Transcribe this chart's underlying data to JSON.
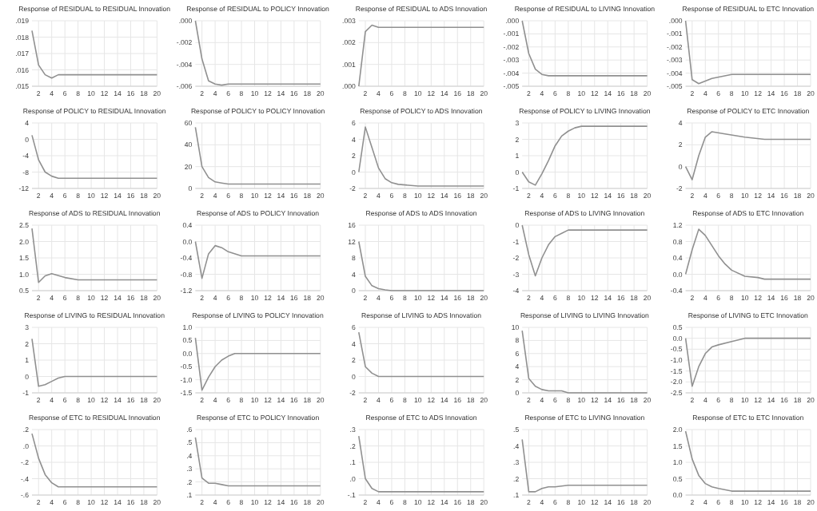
{
  "chart_data": [
    {
      "type": "line",
      "title": "Response of RESIDUAL to RESIDUAL Innovation",
      "x": [
        1,
        2,
        3,
        4,
        5,
        6,
        20
      ],
      "values": [
        0.0184,
        0.0163,
        0.0157,
        0.0155,
        0.0157,
        0.0157,
        0.0157
      ],
      "xlim": [
        1,
        20
      ],
      "xticks": [
        2,
        4,
        6,
        8,
        10,
        12,
        14,
        16,
        18,
        20
      ],
      "ylim": [
        0.015,
        0.019
      ],
      "yticks": [
        {
          "value": 0.015,
          "label": ".015"
        },
        {
          "value": 0.016,
          "label": ".016"
        },
        {
          "value": 0.017,
          "label": ".017"
        },
        {
          "value": 0.018,
          "label": ".018"
        },
        {
          "value": 0.019,
          "label": ".019"
        }
      ],
      "grid": true,
      "color": "#909090"
    },
    {
      "type": "line",
      "title": "Response of RESIDUAL to POLICY Innovation",
      "x": [
        1,
        2,
        3,
        4,
        5,
        6,
        20
      ],
      "values": [
        0,
        -0.0035,
        -0.0055,
        -0.0058,
        -0.0059,
        -0.0058,
        -0.0058
      ],
      "xlim": [
        1,
        20
      ],
      "xticks": [
        2,
        4,
        6,
        8,
        10,
        12,
        14,
        16,
        18,
        20
      ],
      "ylim": [
        -0.006,
        0
      ],
      "yticks": [
        {
          "value": -0.006,
          "label": "-.006"
        },
        {
          "value": -0.004,
          "label": "-.004"
        },
        {
          "value": -0.002,
          "label": "-.002"
        },
        {
          "value": 0,
          "label": ".000"
        }
      ],
      "grid": true,
      "color": "#909090"
    },
    {
      "type": "line",
      "title": "Response of RESIDUAL to ADS Innovation",
      "x": [
        1,
        2,
        3,
        4,
        20
      ],
      "values": [
        0,
        0.0025,
        0.0028,
        0.0027,
        0.0027
      ],
      "xlim": [
        1,
        20
      ],
      "xticks": [
        2,
        4,
        6,
        8,
        10,
        12,
        14,
        16,
        18,
        20
      ],
      "ylim": [
        0,
        0.003
      ],
      "yticks": [
        {
          "value": 0,
          "label": ".000"
        },
        {
          "value": 0.001,
          "label": ".001"
        },
        {
          "value": 0.002,
          "label": ".002"
        },
        {
          "value": 0.003,
          "label": ".003"
        }
      ],
      "grid": true,
      "color": "#909090"
    },
    {
      "type": "line",
      "title": "Response of RESIDUAL to LIVING Innovation",
      "x": [
        1,
        2,
        3,
        4,
        5,
        20
      ],
      "values": [
        0,
        -0.0025,
        -0.0037,
        -0.0041,
        -0.0042,
        -0.0042
      ],
      "xlim": [
        1,
        20
      ],
      "xticks": [
        2,
        4,
        6,
        8,
        10,
        12,
        14,
        16,
        18,
        20
      ],
      "ylim": [
        -0.005,
        0
      ],
      "yticks": [
        {
          "value": -0.005,
          "label": "-.005"
        },
        {
          "value": -0.004,
          "label": "-.004"
        },
        {
          "value": -0.003,
          "label": "-.003"
        },
        {
          "value": -0.002,
          "label": "-.002"
        },
        {
          "value": -0.001,
          "label": "-.001"
        },
        {
          "value": 0,
          "label": ".000"
        }
      ],
      "grid": true,
      "color": "#909090"
    },
    {
      "type": "line",
      "title": "Response of RESIDUAL to ETC Innovation",
      "x": [
        1,
        2,
        3,
        5,
        8,
        20
      ],
      "values": [
        0,
        -0.0045,
        -0.0048,
        -0.0044,
        -0.0041,
        -0.0041
      ],
      "xlim": [
        1,
        20
      ],
      "xticks": [
        2,
        4,
        6,
        8,
        10,
        12,
        14,
        16,
        18,
        20
      ],
      "ylim": [
        -0.005,
        0
      ],
      "yticks": [
        {
          "value": -0.005,
          "label": "-.005"
        },
        {
          "value": -0.004,
          "label": "-.004"
        },
        {
          "value": -0.003,
          "label": "-.003"
        },
        {
          "value": -0.002,
          "label": "-.002"
        },
        {
          "value": -0.001,
          "label": "-.001"
        },
        {
          "value": 0,
          "label": ".000"
        }
      ],
      "grid": true,
      "color": "#909090"
    },
    {
      "type": "line",
      "title": "Response of POLICY to RESIDUAL Innovation",
      "x": [
        1,
        2,
        3,
        4,
        5,
        20
      ],
      "values": [
        1,
        -5,
        -8,
        -9,
        -9.5,
        -9.5
      ],
      "xlim": [
        1,
        20
      ],
      "xticks": [
        2,
        4,
        6,
        8,
        10,
        12,
        14,
        16,
        18,
        20
      ],
      "ylim": [
        -12,
        4
      ],
      "yticks": [
        -12,
        -8,
        -4,
        0,
        4
      ],
      "grid": true,
      "color": "#909090"
    },
    {
      "type": "line",
      "title": "Response of POLICY to POLICY Innovation",
      "x": [
        1,
        2,
        3,
        4,
        5,
        6,
        20
      ],
      "values": [
        56,
        20,
        10,
        6,
        5,
        4,
        4
      ],
      "xlim": [
        1,
        20
      ],
      "xticks": [
        2,
        4,
        6,
        8,
        10,
        12,
        14,
        16,
        18,
        20
      ],
      "ylim": [
        0,
        60
      ],
      "yticks": [
        0,
        20,
        40,
        60
      ],
      "grid": true,
      "color": "#909090"
    },
    {
      "type": "line",
      "title": "Response of POLICY to ADS Innovation",
      "x": [
        1,
        2,
        3,
        4,
        5,
        6,
        7,
        10,
        20
      ],
      "values": [
        0,
        5.5,
        3,
        0.5,
        -0.8,
        -1.3,
        -1.5,
        -1.7,
        -1.7
      ],
      "xlim": [
        1,
        20
      ],
      "xticks": [
        2,
        4,
        6,
        8,
        10,
        12,
        14,
        16,
        18,
        20
      ],
      "ylim": [
        -2,
        6
      ],
      "yticks": [
        -2,
        0,
        2,
        4,
        6
      ],
      "grid": true,
      "color": "#909090"
    },
    {
      "type": "line",
      "title": "Response of POLICY to LIVING Innovation",
      "x": [
        1,
        2,
        3,
        4,
        5,
        6,
        7,
        8,
        9,
        10,
        20
      ],
      "values": [
        0,
        -0.6,
        -0.8,
        -0.1,
        0.7,
        1.6,
        2.2,
        2.5,
        2.7,
        2.8,
        2.8
      ],
      "xlim": [
        1,
        20
      ],
      "xticks": [
        2,
        4,
        6,
        8,
        10,
        12,
        14,
        16,
        18,
        20
      ],
      "ylim": [
        -1,
        3
      ],
      "yticks": [
        -1,
        0,
        1,
        2,
        3
      ],
      "grid": true,
      "color": "#909090"
    },
    {
      "type": "line",
      "title": "Response of POLICY to ETC Innovation",
      "x": [
        1,
        2,
        3,
        4,
        5,
        7,
        10,
        13,
        20
      ],
      "values": [
        0,
        -1.2,
        1,
        2.7,
        3.2,
        3,
        2.7,
        2.5,
        2.5
      ],
      "xlim": [
        1,
        20
      ],
      "xticks": [
        2,
        4,
        6,
        8,
        10,
        12,
        14,
        16,
        18,
        20
      ],
      "ylim": [
        -2,
        4
      ],
      "yticks": [
        -2,
        0,
        2,
        4
      ],
      "grid": true,
      "color": "#909090"
    },
    {
      "type": "line",
      "title": "Response of ADS to RESIDUAL Innovation",
      "x": [
        1,
        2,
        3,
        4,
        6,
        8,
        20
      ],
      "values": [
        2.4,
        0.75,
        0.95,
        1.02,
        0.9,
        0.83,
        0.83
      ],
      "xlim": [
        1,
        20
      ],
      "xticks": [
        2,
        4,
        6,
        8,
        10,
        12,
        14,
        16,
        18,
        20
      ],
      "ylim": [
        0.5,
        2.5
      ],
      "yticks": [
        0.5,
        {
          "value": 1,
          "label": "1.0"
        },
        1.5,
        {
          "value": 2,
          "label": "2.0"
        },
        2.5
      ],
      "grid": true,
      "color": "#909090"
    },
    {
      "type": "line",
      "title": "Response of ADS to POLICY Innovation",
      "x": [
        1,
        2,
        3,
        4,
        5,
        6,
        8,
        20
      ],
      "values": [
        0,
        -0.9,
        -0.3,
        -0.1,
        -0.15,
        -0.25,
        -0.35,
        -0.35
      ],
      "xlim": [
        1,
        20
      ],
      "xticks": [
        2,
        4,
        6,
        8,
        10,
        12,
        14,
        16,
        18,
        20
      ],
      "ylim": [
        -1.2,
        0.4
      ],
      "yticks": [
        -1.2,
        -0.8,
        -0.4,
        {
          "value": 0,
          "label": "0.0"
        },
        0.4
      ],
      "grid": true,
      "color": "#909090"
    },
    {
      "type": "line",
      "title": "Response of ADS to ADS Innovation",
      "x": [
        1,
        2,
        3,
        4,
        5,
        6,
        20
      ],
      "values": [
        12,
        3.5,
        1.2,
        0.5,
        0.2,
        0,
        0
      ],
      "xlim": [
        1,
        20
      ],
      "xticks": [
        2,
        4,
        6,
        8,
        10,
        12,
        14,
        16,
        18,
        20
      ],
      "ylim": [
        0,
        16
      ],
      "yticks": [
        0,
        4,
        8,
        12,
        16
      ],
      "grid": true,
      "color": "#909090"
    },
    {
      "type": "line",
      "title": "Response of ADS to LIVING Innovation",
      "x": [
        1,
        2,
        3,
        4,
        5,
        6,
        7,
        8,
        20
      ],
      "values": [
        0,
        -1.8,
        -3.1,
        -2,
        -1.2,
        -0.7,
        -0.5,
        -0.3,
        -0.3
      ],
      "xlim": [
        1,
        20
      ],
      "xticks": [
        2,
        4,
        6,
        8,
        10,
        12,
        14,
        16,
        18,
        20
      ],
      "ylim": [
        -4,
        0
      ],
      "yticks": [
        -4,
        -3,
        -2,
        -1,
        0
      ],
      "grid": true,
      "color": "#909090"
    },
    {
      "type": "line",
      "title": "Response of ADS to ETC Innovation",
      "x": [
        1,
        2,
        3,
        4,
        5,
        6,
        7,
        8,
        10,
        12,
        13,
        20
      ],
      "values": [
        0,
        0.6,
        1.1,
        0.95,
        0.7,
        0.45,
        0.25,
        0.1,
        -0.05,
        -0.08,
        -0.12,
        -0.12
      ],
      "xlim": [
        1,
        20
      ],
      "xticks": [
        2,
        4,
        6,
        8,
        10,
        12,
        14,
        16,
        18,
        20
      ],
      "ylim": [
        -0.4,
        1.2
      ],
      "yticks": [
        -0.4,
        {
          "value": 0,
          "label": "0.0"
        },
        0.4,
        0.8,
        1.2
      ],
      "grid": true,
      "color": "#909090"
    },
    {
      "type": "line",
      "title": "Response of LIVING to RESIDUAL Innovation",
      "x": [
        1,
        2,
        3,
        4,
        5,
        6,
        20
      ],
      "values": [
        2.3,
        -0.6,
        -0.5,
        -0.3,
        -0.1,
        0,
        0
      ],
      "xlim": [
        1,
        20
      ],
      "xticks": [
        2,
        4,
        6,
        8,
        10,
        12,
        14,
        16,
        18,
        20
      ],
      "ylim": [
        -1,
        3
      ],
      "yticks": [
        -1,
        0,
        1,
        2,
        3
      ],
      "grid": true,
      "color": "#909090"
    },
    {
      "type": "line",
      "title": "Response of LIVING to POLICY Innovation",
      "x": [
        1,
        2,
        3,
        4,
        5,
        6,
        7,
        20
      ],
      "values": [
        0.6,
        -1.4,
        -0.9,
        -0.5,
        -0.25,
        -0.1,
        0,
        0
      ],
      "xlim": [
        1,
        20
      ],
      "xticks": [
        2,
        4,
        6,
        8,
        10,
        12,
        14,
        16,
        18,
        20
      ],
      "ylim": [
        -1.5,
        1
      ],
      "yticks": [
        -1.5,
        {
          "value": -1,
          "label": "-1.0"
        },
        -0.5,
        {
          "value": 0,
          "label": "0.0"
        },
        0.5,
        {
          "value": 1,
          "label": "1.0"
        }
      ],
      "grid": true,
      "color": "#909090"
    },
    {
      "type": "line",
      "title": "Response of LIVING to ADS Innovation",
      "x": [
        1,
        2,
        3,
        4,
        20
      ],
      "values": [
        5.4,
        1.2,
        0.4,
        0,
        0
      ],
      "xlim": [
        1,
        20
      ],
      "xticks": [
        2,
        4,
        6,
        8,
        10,
        12,
        14,
        16,
        18,
        20
      ],
      "ylim": [
        -2,
        6
      ],
      "yticks": [
        -2,
        0,
        2,
        4,
        6
      ],
      "grid": true,
      "color": "#909090"
    },
    {
      "type": "line",
      "title": "Response of LIVING to LIVING Innovation",
      "x": [
        1,
        2,
        3,
        4,
        5,
        7,
        8,
        20
      ],
      "values": [
        9.5,
        2.2,
        1,
        0.5,
        0.3,
        0.3,
        0,
        0
      ],
      "xlim": [
        1,
        20
      ],
      "xticks": [
        2,
        4,
        6,
        8,
        10,
        12,
        14,
        16,
        18,
        20
      ],
      "ylim": [
        0,
        10
      ],
      "yticks": [
        0,
        2,
        4,
        6,
        8,
        10
      ],
      "grid": true,
      "color": "#909090"
    },
    {
      "type": "line",
      "title": "Response of LIVING to ETC Innovation",
      "x": [
        1,
        2,
        3,
        4,
        5,
        6,
        8,
        10,
        20
      ],
      "values": [
        0,
        -2.2,
        -1.3,
        -0.7,
        -0.4,
        -0.3,
        -0.15,
        0,
        0
      ],
      "xlim": [
        1,
        20
      ],
      "xticks": [
        2,
        4,
        6,
        8,
        10,
        12,
        14,
        16,
        18,
        20
      ],
      "ylim": [
        -2.5,
        0.5
      ],
      "yticks": [
        -2.5,
        {
          "value": -2,
          "label": "-2.0"
        },
        -1.5,
        {
          "value": -1,
          "label": "-1.0"
        },
        -0.5,
        {
          "value": 0,
          "label": "0.0"
        },
        0.5
      ],
      "grid": true,
      "color": "#909090"
    },
    {
      "type": "line",
      "title": "Response of ETC to RESIDUAL Innovation",
      "x": [
        1,
        2,
        3,
        4,
        5,
        20
      ],
      "values": [
        0.15,
        -0.15,
        -0.35,
        -0.45,
        -0.5,
        -0.5
      ],
      "xlim": [
        1,
        20
      ],
      "xticks": [
        2,
        4,
        6,
        8,
        10,
        12,
        14,
        16,
        18,
        20
      ],
      "ylim": [
        -0.6,
        0.2
      ],
      "yticks": [
        {
          "value": -0.6,
          "label": "-.6"
        },
        {
          "value": -0.4,
          "label": "-.4"
        },
        {
          "value": -0.2,
          "label": "-.2"
        },
        {
          "value": 0,
          "label": ".0"
        },
        {
          "value": 0.2,
          "label": ".2"
        }
      ],
      "grid": true,
      "color": "#909090"
    },
    {
      "type": "line",
      "title": "Response of ETC to POLICY Innovation",
      "x": [
        1,
        2,
        3,
        4,
        5,
        6,
        20
      ],
      "values": [
        0.54,
        0.23,
        0.19,
        0.19,
        0.18,
        0.17,
        0.17
      ],
      "xlim": [
        1,
        20
      ],
      "xticks": [
        2,
        4,
        6,
        8,
        10,
        12,
        14,
        16,
        18,
        20
      ],
      "ylim": [
        0.1,
        0.6
      ],
      "yticks": [
        {
          "value": 0.1,
          "label": ".1"
        },
        {
          "value": 0.2,
          "label": ".2"
        },
        {
          "value": 0.3,
          "label": ".3"
        },
        {
          "value": 0.4,
          "label": ".4"
        },
        {
          "value": 0.5,
          "label": ".5"
        },
        {
          "value": 0.6,
          "label": ".6"
        }
      ],
      "grid": true,
      "color": "#909090"
    },
    {
      "type": "line",
      "title": "Response of ETC to ADS Innovation",
      "x": [
        1,
        2,
        3,
        4,
        20
      ],
      "values": [
        0.26,
        0,
        -0.06,
        -0.08,
        -0.08
      ],
      "xlim": [
        1,
        20
      ],
      "xticks": [
        2,
        4,
        6,
        8,
        10,
        12,
        14,
        16,
        18,
        20
      ],
      "ylim": [
        -0.1,
        0.3
      ],
      "yticks": [
        {
          "value": -0.1,
          "label": "-.1"
        },
        {
          "value": 0,
          "label": ".0"
        },
        {
          "value": 0.1,
          "label": ".1"
        },
        {
          "value": 0.2,
          "label": ".2"
        },
        {
          "value": 0.3,
          "label": ".3"
        }
      ],
      "grid": true,
      "color": "#909090"
    },
    {
      "type": "line",
      "title": "Response of ETC to LIVING Innovation",
      "x": [
        1,
        2,
        3,
        4,
        5,
        6,
        8,
        20
      ],
      "values": [
        0.44,
        0.12,
        0.12,
        0.14,
        0.15,
        0.15,
        0.16,
        0.16
      ],
      "xlim": [
        1,
        20
      ],
      "xticks": [
        2,
        4,
        6,
        8,
        10,
        12,
        14,
        16,
        18,
        20
      ],
      "ylim": [
        0.1,
        0.5
      ],
      "yticks": [
        {
          "value": 0.1,
          "label": ".1"
        },
        {
          "value": 0.2,
          "label": ".2"
        },
        {
          "value": 0.3,
          "label": ".3"
        },
        {
          "value": 0.4,
          "label": ".4"
        },
        {
          "value": 0.5,
          "label": ".5"
        }
      ],
      "grid": true,
      "color": "#909090"
    },
    {
      "type": "line",
      "title": "Response of ETC to ETC Innovation",
      "x": [
        1,
        2,
        3,
        4,
        5,
        6,
        8,
        20
      ],
      "values": [
        1.95,
        1.1,
        0.6,
        0.35,
        0.25,
        0.2,
        0.12,
        0.12
      ],
      "xlim": [
        1,
        20
      ],
      "xticks": [
        2,
        4,
        6,
        8,
        10,
        12,
        14,
        16,
        18,
        20
      ],
      "ylim": [
        0,
        2
      ],
      "yticks": [
        {
          "value": 0,
          "label": "0.0"
        },
        0.5,
        {
          "value": 1,
          "label": "1.0"
        },
        1.5,
        {
          "value": 2,
          "label": "2.0"
        }
      ],
      "grid": true,
      "color": "#909090"
    }
  ]
}
